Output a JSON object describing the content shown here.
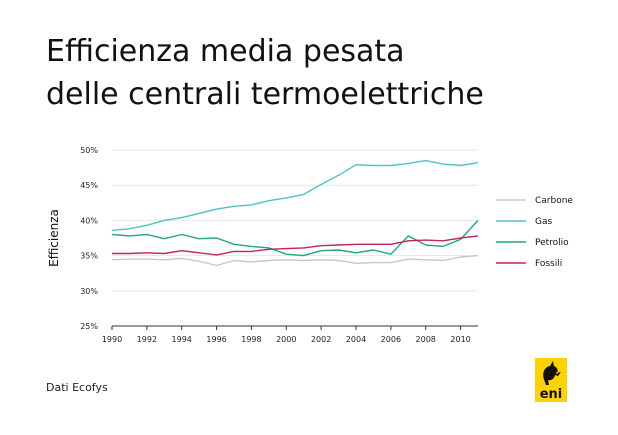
{
  "title_lines": [
    "Efficienza media pesata",
    "delle centrali termoelettriche"
  ],
  "source": "Dati Ecofys",
  "logo_text": "eni",
  "chart_data": {
    "type": "line",
    "ylabel": "Efficienza",
    "xlabel": "",
    "x": [
      1990,
      1991,
      1992,
      1993,
      1994,
      1995,
      1996,
      1997,
      1998,
      1999,
      2000,
      2001,
      2002,
      2003,
      2004,
      2005,
      2006,
      2007,
      2008,
      2009,
      2010,
      2011
    ],
    "xticks": [
      1990,
      1992,
      1994,
      1996,
      1998,
      2000,
      2002,
      2004,
      2006,
      2008,
      2010
    ],
    "xlim": [
      1990,
      2011
    ],
    "ylim": [
      25,
      50
    ],
    "yticks": [
      25,
      30,
      35,
      40,
      45,
      50
    ],
    "ytick_labels": [
      "25%",
      "30%",
      "35%",
      "40%",
      "45%",
      "50%"
    ],
    "grid": "horizontal",
    "legend_position": "right",
    "series": [
      {
        "name": "Carbone",
        "color": "#c8c8c8",
        "values": [
          34.4,
          34.5,
          34.5,
          34.4,
          34.6,
          34.2,
          33.6,
          34.3,
          34.1,
          34.3,
          34.4,
          34.3,
          34.4,
          34.3,
          33.9,
          34.0,
          34.0,
          34.5,
          34.4,
          34.3,
          34.8,
          35.0
        ]
      },
      {
        "name": "Gas",
        "color": "#4ec3c6",
        "values": [
          38.6,
          38.8,
          39.3,
          40.0,
          40.4,
          41.0,
          41.6,
          42.0,
          42.2,
          42.8,
          43.2,
          43.7,
          45.1,
          46.4,
          47.9,
          47.8,
          47.8,
          48.1,
          48.5,
          48.0,
          47.8,
          48.2
        ]
      },
      {
        "name": "Petrolio",
        "color": "#1fa58c",
        "values": [
          38.0,
          37.8,
          38.0,
          37.4,
          38.0,
          37.4,
          37.5,
          36.6,
          36.3,
          36.1,
          35.2,
          35.0,
          35.7,
          35.8,
          35.4,
          35.8,
          35.2,
          37.8,
          36.5,
          36.3,
          37.3,
          40.0
        ]
      },
      {
        "name": "Fossili",
        "color": "#c2255c",
        "values": [
          35.3,
          35.3,
          35.4,
          35.3,
          35.7,
          35.4,
          35.1,
          35.6,
          35.6,
          35.9,
          36.0,
          36.1,
          36.4,
          36.5,
          36.6,
          36.6,
          36.6,
          37.1,
          37.2,
          37.1,
          37.5,
          37.8
        ]
      }
    ]
  }
}
